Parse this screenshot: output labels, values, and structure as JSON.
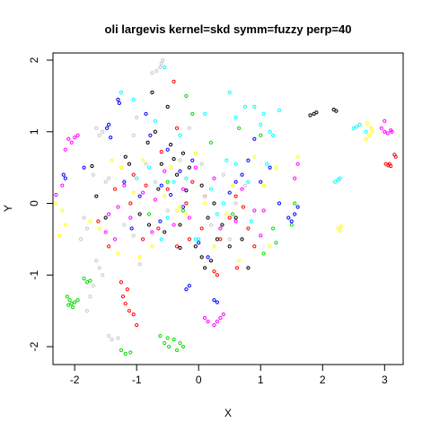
{
  "chart_data": {
    "type": "scatter",
    "title": "oli largevis kernel=skd symm=fuzzy perp=40",
    "xlabel": "X",
    "ylabel": "Y",
    "xlim": [
      -2.35,
      3.3
    ],
    "ylim": [
      -2.25,
      2.1
    ],
    "xticks": [
      "-2",
      "-1",
      "0",
      "1",
      "2",
      "3"
    ],
    "xtick_values": [
      -2,
      -1,
      0,
      1,
      2,
      3
    ],
    "yticks": [
      "-2",
      "-1",
      "0",
      "1",
      "2"
    ],
    "ytick_values": [
      -2,
      -1,
      0,
      1,
      2
    ],
    "marker": "open-circle",
    "grid": false,
    "series": [
      {
        "color": "#000000",
        "points": [
          [
            1.8,
            1.23
          ],
          [
            1.86,
            1.25
          ],
          [
            1.9,
            1.27
          ],
          [
            2.18,
            1.31
          ],
          [
            2.22,
            1.29
          ],
          [
            -1.72,
            0.52
          ],
          [
            -1.65,
            0.1
          ],
          [
            -1.5,
            -0.2
          ],
          [
            -1.18,
            0.65
          ],
          [
            -1.12,
            0.55
          ],
          [
            -0.95,
            -0.15
          ],
          [
            -0.82,
            0.85
          ],
          [
            -0.75,
            1.55
          ],
          [
            -0.7,
            1.0
          ],
          [
            -0.6,
            0.55
          ],
          [
            -0.55,
            -0.4
          ],
          [
            -0.5,
            1.35
          ],
          [
            -0.45,
            0.82
          ],
          [
            -0.4,
            0.62
          ],
          [
            -0.3,
            -0.62
          ],
          [
            -0.25,
            0.7
          ],
          [
            -0.2,
            0.18
          ],
          [
            -0.15,
            0.5
          ],
          [
            -0.05,
            -0.6
          ],
          [
            0.05,
            -0.75
          ],
          [
            0.1,
            -0.9
          ],
          [
            0.2,
            -0.8
          ],
          [
            0.3,
            -0.5
          ],
          [
            0.38,
            -0.3
          ],
          [
            0.5,
            -0.6
          ],
          [
            0.6,
            -0.2
          ],
          [
            0.7,
            -0.5
          ],
          [
            0.8,
            -0.9
          ],
          [
            -0.3,
            -0.3
          ],
          [
            -0.35,
            0.4
          ],
          [
            -0.65,
            0.2
          ],
          [
            -0.8,
            -0.3
          ],
          [
            0.05,
            0.25
          ],
          [
            0.15,
            -0.2
          ],
          [
            0.25,
            0.0
          ]
        ]
      },
      {
        "color": "#ff0000",
        "points": [
          [
            3.02,
            0.55
          ],
          [
            3.06,
            0.53
          ],
          [
            3.08,
            0.55
          ],
          [
            3.1,
            0.52
          ],
          [
            3.16,
            0.68
          ],
          [
            3.18,
            0.65
          ],
          [
            -1.22,
            -1.3
          ],
          [
            -1.18,
            -1.4
          ],
          [
            -1.12,
            -1.5
          ],
          [
            -1.05,
            -1.55
          ],
          [
            -1.0,
            -1.7
          ],
          [
            -1.15,
            -1.2
          ],
          [
            -1.25,
            -1.1
          ],
          [
            -1.35,
            0.2
          ],
          [
            -1.1,
            0.0
          ],
          [
            -0.9,
            -0.5
          ],
          [
            -0.85,
            0.25
          ],
          [
            -0.65,
            -0.35
          ],
          [
            -0.5,
            0.2
          ],
          [
            -0.35,
            -0.6
          ],
          [
            -0.2,
            0.0
          ],
          [
            -0.15,
            -0.5
          ],
          [
            -0.1,
            0.3
          ],
          [
            0.05,
            -0.35
          ],
          [
            0.1,
            0.1
          ],
          [
            0.35,
            -0.5
          ],
          [
            0.5,
            -0.2
          ],
          [
            0.6,
            0.1
          ],
          [
            0.62,
            -0.9
          ],
          [
            0.8,
            -0.35
          ],
          [
            0.9,
            -0.6
          ],
          [
            0.72,
            -0.05
          ],
          [
            0.3,
            -1.0
          ],
          [
            0.25,
            -0.95
          ],
          [
            -0.6,
            0.72
          ],
          [
            -0.4,
            1.7
          ],
          [
            -0.35,
            1.05
          ],
          [
            -1.05,
            0.4
          ],
          [
            -1.45,
            -0.6
          ],
          [
            -1.62,
            -0.25
          ]
        ]
      },
      {
        "color": "#00dd00",
        "points": [
          [
            -2.05,
            -1.4
          ],
          [
            -2.08,
            -1.35
          ],
          [
            -2.0,
            -1.38
          ],
          [
            -2.12,
            -1.3
          ],
          [
            -2.03,
            -1.45
          ],
          [
            -1.95,
            -1.35
          ],
          [
            -2.1,
            -1.42
          ],
          [
            -1.85,
            -1.05
          ],
          [
            -1.8,
            -1.1
          ],
          [
            -1.75,
            -1.08
          ],
          [
            -1.25,
            -2.05
          ],
          [
            -1.18,
            -2.1
          ],
          [
            -1.1,
            -2.08
          ],
          [
            -0.62,
            -1.85
          ],
          [
            -0.55,
            -1.95
          ],
          [
            -0.48,
            -2.0
          ],
          [
            -0.4,
            -1.9
          ],
          [
            -0.35,
            -2.05
          ],
          [
            -0.3,
            -1.95
          ],
          [
            -0.25,
            -2.0
          ],
          [
            -0.5,
            -1.88
          ],
          [
            1.5,
            -0.3
          ],
          [
            1.55,
            0.0
          ],
          [
            1.2,
            -0.35
          ],
          [
            1.25,
            -0.55
          ],
          [
            1.05,
            -0.7
          ],
          [
            0.65,
            1.05
          ],
          [
            0.2,
            0.85
          ],
          [
            -0.2,
            1.5
          ],
          [
            -0.1,
            1.25
          ],
          [
            -0.5,
            0.3
          ],
          [
            -0.25,
            -0.1
          ],
          [
            1.0,
            0.95
          ],
          [
            -0.8,
            -0.15
          ],
          [
            0.55,
            -0.15
          ]
        ]
      },
      {
        "color": "#0000ff",
        "points": [
          [
            -1.85,
            0.5
          ],
          [
            -1.3,
            1.45
          ],
          [
            -1.28,
            1.4
          ],
          [
            -1.48,
            1.05
          ],
          [
            -1.45,
            1.1
          ],
          [
            -1.42,
            0.92
          ],
          [
            -1.2,
            0.3
          ],
          [
            -0.95,
            0.1
          ],
          [
            -0.78,
            0.95
          ],
          [
            -0.6,
            0.25
          ],
          [
            -0.45,
            0.12
          ],
          [
            -0.3,
            0.45
          ],
          [
            -0.25,
            -0.05
          ],
          [
            -0.2,
            -1.2
          ],
          [
            -0.15,
            -1.15
          ],
          [
            0.15,
            -0.75
          ],
          [
            0.25,
            -1.35
          ],
          [
            0.3,
            -1.38
          ],
          [
            0.5,
            0.15
          ],
          [
            0.6,
            0.3
          ],
          [
            0.7,
            0.4
          ],
          [
            0.8,
            0.6
          ],
          [
            0.9,
            0.9
          ],
          [
            1.0,
            0.3
          ],
          [
            1.15,
            0.5
          ],
          [
            1.3,
            0.0
          ],
          [
            1.45,
            -0.2
          ],
          [
            1.5,
            -0.25
          ],
          [
            1.55,
            -0.15
          ],
          [
            1.6,
            -0.05
          ],
          [
            -0.62,
            -0.25
          ],
          [
            -1.08,
            -0.35
          ],
          [
            -0.5,
            0.75
          ],
          [
            0.0,
            -0.55
          ],
          [
            -0.85,
            1.25
          ],
          [
            -2.15,
            0.35
          ],
          [
            -2.18,
            0.4
          ],
          [
            -0.1,
            0.6
          ]
        ]
      },
      {
        "color": "#00ffff",
        "points": [
          [
            2.2,
            0.3
          ],
          [
            2.25,
            0.33
          ],
          [
            2.28,
            0.35
          ],
          [
            2.5,
            1.05
          ],
          [
            2.55,
            1.07
          ],
          [
            2.6,
            1.1
          ],
          [
            2.7,
            1.0
          ],
          [
            0.5,
            1.55
          ],
          [
            0.6,
            1.2
          ],
          [
            0.75,
            1.35
          ],
          [
            0.9,
            1.35
          ],
          [
            1.0,
            1.1
          ],
          [
            1.05,
            1.25
          ],
          [
            1.15,
            1.0
          ],
          [
            1.2,
            0.95
          ],
          [
            1.3,
            1.3
          ],
          [
            0.8,
            0.3
          ],
          [
            0.6,
            0.55
          ],
          [
            0.4,
            0.0
          ],
          [
            0.2,
            0.2
          ],
          [
            0.0,
            -0.5
          ],
          [
            -0.05,
            -0.5
          ],
          [
            -0.4,
            0.3
          ],
          [
            -0.5,
            -0.2
          ],
          [
            -0.6,
            -0.5
          ],
          [
            -0.7,
            1.15
          ],
          [
            -0.8,
            0.5
          ],
          [
            -1.0,
            0.35
          ],
          [
            -1.25,
            1.55
          ],
          [
            -1.05,
            1.45
          ],
          [
            -0.55,
            1.9
          ],
          [
            -0.3,
            0.95
          ],
          [
            0.3,
            -0.15
          ],
          [
            0.45,
            0.6
          ],
          [
            0.85,
            -0.25
          ],
          [
            0.1,
            1.25
          ],
          [
            1.1,
            0.55
          ],
          [
            -0.2,
            0.35
          ]
        ]
      },
      {
        "color": "#ff00ff",
        "points": [
          [
            -2.05,
            0.85
          ],
          [
            -2.1,
            0.9
          ],
          [
            -2.15,
            0.75
          ],
          [
            -2.0,
            0.92
          ],
          [
            -1.95,
            0.95
          ],
          [
            -2.2,
            0.25
          ],
          [
            -2.3,
            0.12
          ],
          [
            2.95,
            1.05
          ],
          [
            3.0,
            1.0
          ],
          [
            3.05,
            0.98
          ],
          [
            3.1,
            1.02
          ],
          [
            3.12,
            1.0
          ],
          [
            3.0,
            1.15
          ],
          [
            0.1,
            -1.6
          ],
          [
            0.15,
            -1.65
          ],
          [
            0.25,
            -1.7
          ],
          [
            0.3,
            -1.65
          ],
          [
            0.35,
            -1.6
          ],
          [
            0.4,
            -1.55
          ],
          [
            -1.5,
            -0.4
          ],
          [
            -1.45,
            -0.15
          ],
          [
            -1.3,
            -0.05
          ],
          [
            -1.2,
            0.25
          ],
          [
            -1.1,
            -0.2
          ],
          [
            -0.9,
            0.15
          ],
          [
            -0.75,
            -0.4
          ],
          [
            -0.7,
            0.05
          ],
          [
            -0.55,
            0.45
          ],
          [
            -0.4,
            -0.3
          ],
          [
            -0.25,
            0.2
          ],
          [
            -0.05,
            0.5
          ],
          [
            0.25,
            0.35
          ],
          [
            0.35,
            -0.35
          ],
          [
            0.6,
            -0.25
          ],
          [
            0.7,
            0.2
          ],
          [
            0.9,
            -0.1
          ],
          [
            1.0,
            -0.45
          ],
          [
            1.05,
            -0.1
          ],
          [
            1.55,
            0.35
          ],
          [
            1.6,
            0.55
          ],
          [
            -1.35,
            -0.5
          ],
          [
            -0.15,
            -0.2
          ]
        ]
      },
      {
        "color": "#ffff00",
        "points": [
          [
            2.25,
            -0.35
          ],
          [
            2.3,
            -0.32
          ],
          [
            2.28,
            -0.38
          ],
          [
            2.7,
            0.9
          ],
          [
            2.75,
            0.95
          ],
          [
            2.78,
            1.05
          ],
          [
            2.72,
            1.12
          ],
          [
            2.8,
            1.0
          ],
          [
            -2.3,
            0.0
          ],
          [
            -2.2,
            -0.1
          ],
          [
            -2.25,
            -0.45
          ],
          [
            -2.15,
            -0.3
          ],
          [
            -1.9,
            -0.5
          ],
          [
            -1.75,
            -0.25
          ],
          [
            -1.6,
            -0.35
          ],
          [
            -1.4,
            0.6
          ],
          [
            -1.25,
            0.5
          ],
          [
            -1.05,
            0.15
          ],
          [
            -0.9,
            0.6
          ],
          [
            -0.75,
            -0.6
          ],
          [
            -0.55,
            0.1
          ],
          [
            -0.45,
            0.5
          ],
          [
            -0.35,
            -0.1
          ],
          [
            -0.2,
            -0.15
          ],
          [
            -0.05,
            0.7
          ],
          [
            0.1,
            0.0
          ],
          [
            0.25,
            -0.6
          ],
          [
            0.45,
            -0.15
          ],
          [
            0.55,
            0.25
          ],
          [
            0.9,
            0.65
          ],
          [
            1.05,
            0.25
          ],
          [
            1.25,
            0.5
          ],
          [
            1.6,
            0.65
          ],
          [
            -1.3,
            -0.7
          ],
          [
            -0.95,
            -0.75
          ],
          [
            0.65,
            -0.8
          ],
          [
            1.15,
            -0.6
          ],
          [
            -0.3,
            -0.05
          ]
        ]
      },
      {
        "color": "#c8c8c8",
        "points": [
          [
            -0.62,
            1.9
          ],
          [
            -0.58,
            2.0
          ],
          [
            -0.6,
            1.95
          ],
          [
            -0.68,
            1.85
          ],
          [
            -0.75,
            1.82
          ],
          [
            -1.55,
            1.0
          ],
          [
            -1.6,
            0.95
          ],
          [
            -1.65,
            1.05
          ],
          [
            -1.5,
            0.3
          ],
          [
            -1.45,
            0.35
          ],
          [
            -1.7,
            0.4
          ],
          [
            -1.85,
            -0.2
          ],
          [
            -1.9,
            -0.5
          ],
          [
            -1.8,
            -0.35
          ],
          [
            -1.6,
            -0.9
          ],
          [
            -1.55,
            -1.0
          ],
          [
            -1.65,
            -0.8
          ],
          [
            -1.7,
            -1.15
          ],
          [
            -1.75,
            -1.3
          ],
          [
            -1.8,
            -1.5
          ],
          [
            -1.45,
            -1.85
          ],
          [
            -1.4,
            -1.9
          ],
          [
            -1.3,
            -1.88
          ],
          [
            -1.05,
            -0.45
          ],
          [
            -1.0,
            1.2
          ],
          [
            -1.05,
            0.95
          ],
          [
            -0.85,
            0.55
          ],
          [
            -0.7,
            0.3
          ],
          [
            -0.5,
            -0.1
          ],
          [
            -0.3,
            0.6
          ],
          [
            0.1,
            0.1
          ],
          [
            0.2,
            -0.3
          ],
          [
            0.4,
            0.4
          ],
          [
            0.5,
            -0.5
          ],
          [
            0.6,
            0.0
          ],
          [
            0.75,
            0.25
          ],
          [
            -1.2,
            -0.3
          ],
          [
            -0.95,
            -0.85
          ],
          [
            -0.15,
            1.05
          ],
          [
            0.05,
            0.55
          ]
        ]
      }
    ]
  }
}
